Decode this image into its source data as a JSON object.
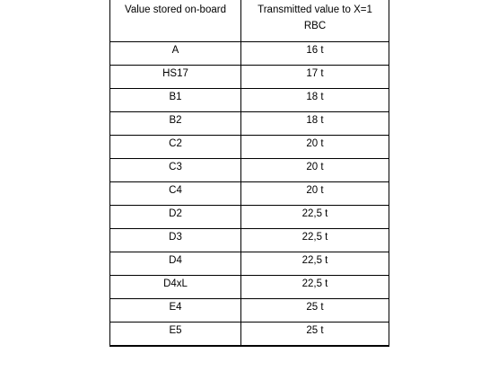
{
  "table": {
    "headers": {
      "col1": "Value stored on-board",
      "col2_line1": "Transmitted value to X=1",
      "col2_line2": "RBC"
    },
    "rows": [
      {
        "stored": "A",
        "transmitted": "16 t"
      },
      {
        "stored": "HS17",
        "transmitted": "17 t"
      },
      {
        "stored": "B1",
        "transmitted": "18 t"
      },
      {
        "stored": "B2",
        "transmitted": "18 t"
      },
      {
        "stored": "C2",
        "transmitted": "20 t"
      },
      {
        "stored": "C3",
        "transmitted": "20 t"
      },
      {
        "stored": "C4",
        "transmitted": "20 t"
      },
      {
        "stored": "D2",
        "transmitted": "22,5 t"
      },
      {
        "stored": "D3",
        "transmitted": "22,5 t"
      },
      {
        "stored": "D4",
        "transmitted": "22,5 t"
      },
      {
        "stored": "D4xL",
        "transmitted": "22,5 t"
      },
      {
        "stored": "E4",
        "transmitted": "25 t"
      },
      {
        "stored": "E5",
        "transmitted": "25 t"
      }
    ]
  }
}
